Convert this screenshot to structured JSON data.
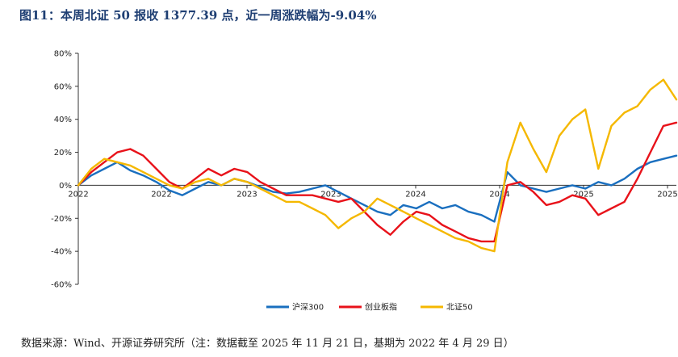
{
  "title": "图11：本周北证 50 报收 1377.39 点，近一周涨跌幅为-9.04%",
  "source": "数据来源：Wind、开源证券研究所（注：数据截至 2025 年 11 月 21 日，基期为 2022 年 4 月 29 日）",
  "chart_data": {
    "type": "line",
    "title": "本周北证 50 报收 1377.39 点，近一周涨跌幅为-9.04%",
    "ylim": [
      -60,
      80
    ],
    "y_ticks": [
      "80%",
      "60%",
      "40%",
      "20%",
      "0%",
      "-20%",
      "-40%",
      "-60%"
    ],
    "x_tick_labels": [
      "2022",
      "2022",
      "2023",
      "2023",
      "2024",
      "2024",
      "2025",
      "2025"
    ],
    "x": [
      0,
      4,
      8,
      12,
      16,
      20,
      24,
      28,
      32,
      36,
      40,
      44,
      48,
      52,
      56,
      60,
      64,
      68,
      72,
      76,
      80,
      84,
      88,
      92,
      96,
      100,
      104,
      108,
      112,
      116,
      120,
      124,
      128,
      132,
      136,
      140,
      144,
      148,
      152,
      156,
      160,
      164,
      168,
      172,
      176,
      180,
      184
    ],
    "series": [
      {
        "name": "沪深300",
        "color": "#1a6fbf",
        "values": [
          0,
          6,
          10,
          14,
          9,
          6,
          2,
          -3,
          -6,
          -2,
          2,
          0,
          4,
          2,
          -1,
          -4,
          -5,
          -4,
          -2,
          0,
          -4,
          -8,
          -12,
          -16,
          -18,
          -12,
          -14,
          -10,
          -14,
          -12,
          -16,
          -18,
          -22,
          8,
          0,
          -2,
          -4,
          -2,
          0,
          -2,
          2,
          0,
          4,
          10,
          14,
          16,
          18
        ]
      },
      {
        "name": "创业板指",
        "color": "#e8121a",
        "values": [
          0,
          8,
          14,
          20,
          22,
          18,
          10,
          2,
          -2,
          4,
          10,
          6,
          10,
          8,
          2,
          -2,
          -6,
          -6,
          -6,
          -8,
          -10,
          -8,
          -16,
          -24,
          -30,
          -22,
          -16,
          -18,
          -24,
          -28,
          -32,
          -34,
          -34,
          0,
          2,
          -4,
          -12,
          -10,
          -6,
          -8,
          -18,
          -14,
          -10,
          4,
          20,
          36,
          38
        ]
      },
      {
        "name": "北证50",
        "color": "#f5b800",
        "values": [
          0,
          10,
          16,
          14,
          12,
          8,
          4,
          0,
          -2,
          2,
          4,
          0,
          4,
          2,
          -2,
          -6,
          -10,
          -10,
          -14,
          -18,
          -26,
          -20,
          -16,
          -8,
          -12,
          -16,
          -20,
          -24,
          -28,
          -32,
          -34,
          -38,
          -40,
          14,
          38,
          22,
          8,
          30,
          40,
          46,
          10,
          36,
          44,
          48,
          58,
          64,
          52
        ]
      }
    ]
  }
}
